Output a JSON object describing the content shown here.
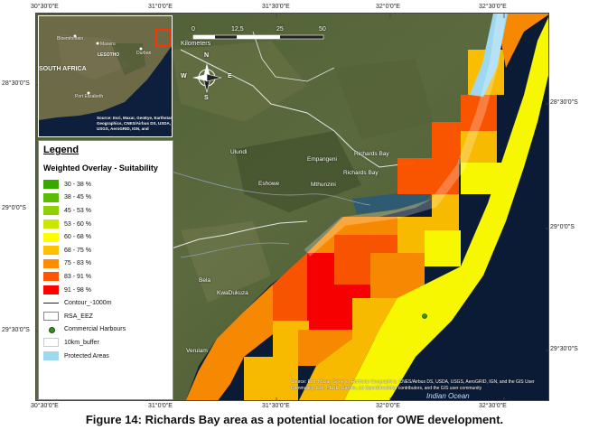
{
  "map": {
    "lon_ticks_top": [
      "30°30'0\"E",
      "31°0'0\"E",
      "31°30'0\"E",
      "32°0'0\"E",
      "32°30'0\"E"
    ],
    "lon_ticks_bottom": [
      "30°30'0\"E",
      "31°0'0\"E",
      "31°30'0\"E",
      "32°0'0\"E",
      "32°30'0\"E"
    ],
    "lat_ticks_left": [
      "28°30'0\"S",
      "29°0'0\"S",
      "29°30'0\"S"
    ],
    "lat_ticks_right": [
      "28°30'0\"S",
      "29°0'0\"S",
      "29°30'0\"S"
    ],
    "scale": {
      "labels": [
        "0",
        "12,5",
        "25",
        "50"
      ],
      "unit": "Kilometers"
    },
    "north_arrow": {
      "n": "N",
      "s": "S",
      "e": "E",
      "w": "W"
    },
    "places": [
      {
        "name": "Empangeni",
        "id": "empangeni"
      },
      {
        "name": "Richards Bay",
        "id": "richards-bay-1"
      },
      {
        "name": "Richards Bay",
        "id": "richards-bay-2"
      },
      {
        "name": "Mthunzini",
        "id": "mthunzini"
      },
      {
        "name": "Eshowe",
        "id": "eshowe"
      },
      {
        "name": "KwaDukuza",
        "id": "kwadukuza"
      },
      {
        "name": "Ulundi",
        "id": "ulundi"
      },
      {
        "name": "Bela",
        "id": "bela"
      },
      {
        "name": "Verulam",
        "id": "verulam"
      }
    ],
    "ocean_label": "Indian Ocean",
    "source_text": "Source: Esri, Maxar, Geoeye, Earthstar Geographics, CNES/Airbus DS, USDA, USGS, AeroGRID, IGN, and the GIS User Community, Esri, HERE, Garmin, (c) OpenStreetMap contributors, and the GIS user community"
  },
  "inset": {
    "labels": [
      "Bloemfontein",
      "Maseru",
      "LESOTHO",
      "SOUTH AFRICA",
      "Durban",
      "Port Elizabeth"
    ],
    "source_text": "Source: Esri, Maxar, GeoEye, Earthstar Geographics, CNES/Airbus DS, USDA, USGS, AeroGRID, IGN, and"
  },
  "legend": {
    "title": "Legend",
    "subtitle": "Weighted Overlay - Suitability",
    "classes": [
      {
        "label": "30 - 38 %",
        "color": "#38a800"
      },
      {
        "label": "38 - 45 %",
        "color": "#5cbc00"
      },
      {
        "label": "45 - 53 %",
        "color": "#8fd100"
      },
      {
        "label": "53 - 60 %",
        "color": "#c8e600"
      },
      {
        "label": "60 - 68 %",
        "color": "#ffff00"
      },
      {
        "label": "68 - 75 %",
        "color": "#ffc000"
      },
      {
        "label": "75 - 83 %",
        "color": "#ff8c00"
      },
      {
        "label": "83 - 91 %",
        "color": "#ff5500"
      },
      {
        "label": "91 - 98 %",
        "color": "#ff0000"
      }
    ],
    "items": {
      "contour": "Contour_-1000m",
      "eez": "RSA_EEZ",
      "harbours": "Commercial Harbours",
      "buffer": "10km_buffer",
      "protected": "Protected Areas"
    },
    "protected_color": "#9ed8f0"
  },
  "caption": "Figure 14: Richards Bay area as a potential location for OWE development."
}
